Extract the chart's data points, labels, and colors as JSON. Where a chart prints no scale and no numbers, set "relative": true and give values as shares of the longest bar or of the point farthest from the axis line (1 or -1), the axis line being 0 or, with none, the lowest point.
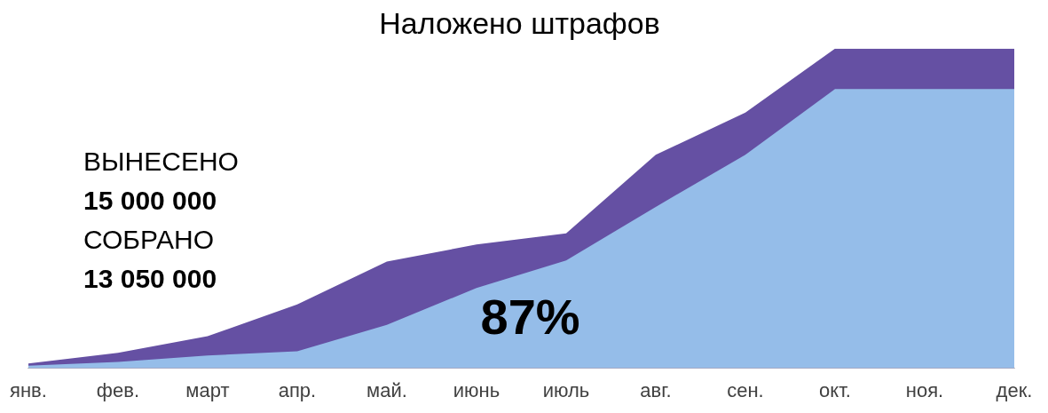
{
  "chart_data": {
    "type": "area",
    "title": "Наложено штрафов",
    "relative": true,
    "categories": [
      "янв.",
      "фев.",
      "март",
      "апр.",
      "май.",
      "июнь",
      "июль",
      "авг.",
      "сен.",
      "окт.",
      "ноя.",
      "дек."
    ],
    "series": [
      {
        "color": "#95bde9",
        "values": [
          0.008,
          0.02,
          0.04,
          0.053,
          0.136,
          0.251,
          0.337,
          0.505,
          0.668,
          0.874,
          0.874,
          0.874
        ]
      },
      {
        "color": "#6550a3",
        "values": [
          0.015,
          0.048,
          0.1,
          0.2,
          0.334,
          0.387,
          0.422,
          0.668,
          0.8,
          1,
          1,
          1
        ]
      }
    ],
    "annotations": [
      "ВЫНЕСЕНО",
      "15 000 000",
      "СОБРАНО",
      "13 050 000",
      "87%"
    ],
    "legend": false,
    "grid": false
  }
}
